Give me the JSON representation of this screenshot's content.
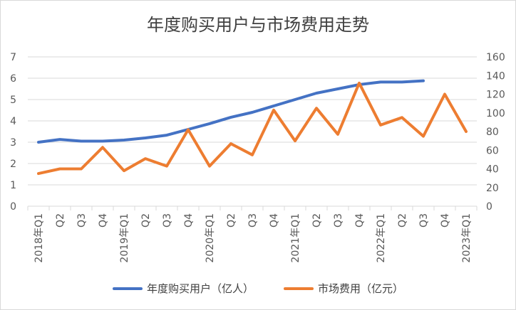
{
  "chart_data": {
    "type": "line",
    "title": "年度购买用户与市场费用走势",
    "categories": [
      "2018年Q1",
      "Q2",
      "Q3",
      "Q4",
      "2019年Q1",
      "Q2",
      "Q3",
      "Q4",
      "2020年Q1",
      "Q2",
      "Q3",
      "Q4",
      "2021年Q1",
      "Q2",
      "Q3",
      "Q4",
      "2022年Q1",
      "Q2",
      "Q3",
      "Q4",
      "2023年Q1"
    ],
    "series": [
      {
        "name": "年度购买用户（亿人）",
        "axis": "left",
        "color": "#4472C4",
        "values": [
          3.0,
          3.13,
          3.05,
          3.05,
          3.1,
          3.2,
          3.33,
          3.6,
          3.87,
          4.17,
          4.4,
          4.7,
          5.0,
          5.3,
          5.5,
          5.7,
          5.82,
          5.82,
          5.88,
          null,
          null
        ]
      },
      {
        "name": "市场费用（亿元）",
        "axis": "right",
        "color": "#ED7D31",
        "values": [
          35,
          40,
          40,
          63,
          38,
          51,
          43,
          82,
          43,
          67,
          55,
          103,
          70,
          105,
          77,
          132,
          87,
          95,
          75,
          120,
          80
        ]
      }
    ],
    "y_left": {
      "min": 0,
      "max": 7,
      "ticks": [
        "0",
        "1",
        "2",
        "3",
        "4",
        "5",
        "6",
        "7"
      ]
    },
    "y_right": {
      "min": 0,
      "max": 160,
      "ticks": [
        "0",
        "20",
        "40",
        "60",
        "80",
        "100",
        "120",
        "140",
        "160"
      ]
    },
    "grid": true,
    "legend_position": "bottom"
  }
}
